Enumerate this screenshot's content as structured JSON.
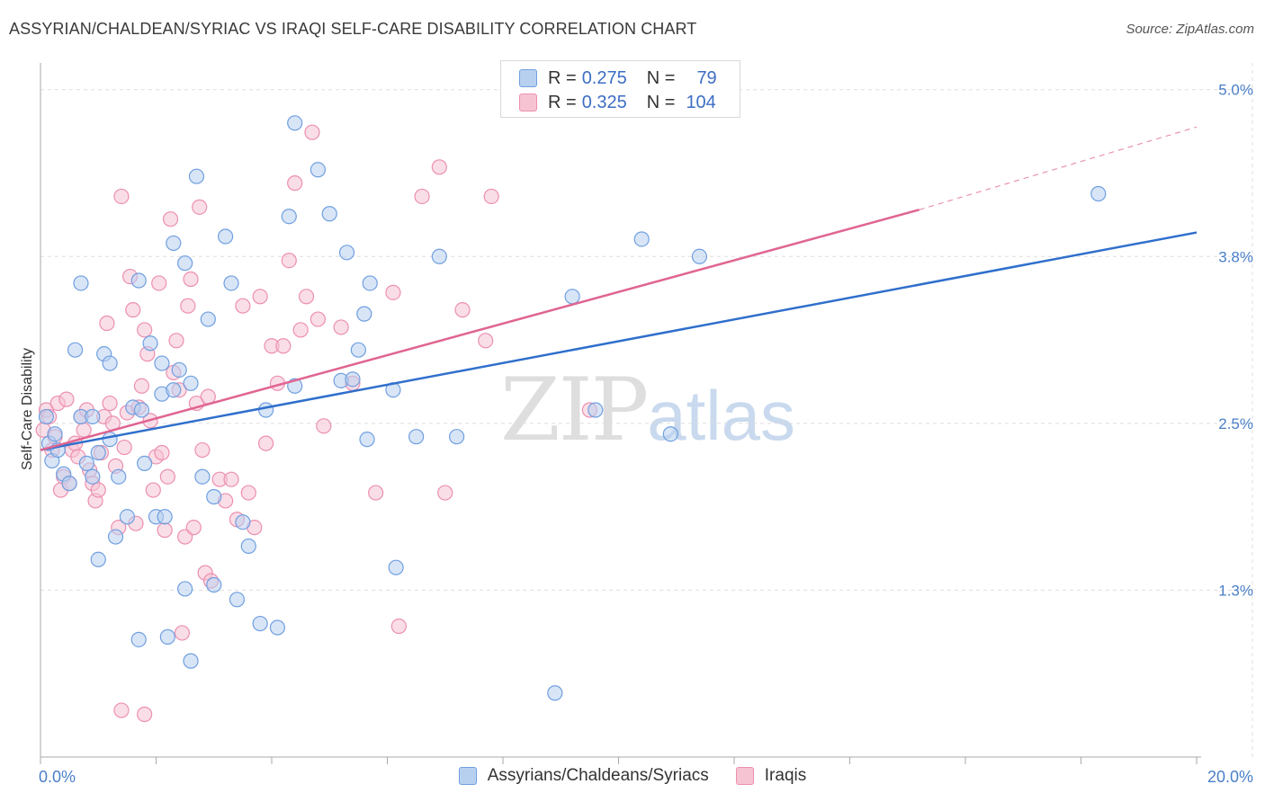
{
  "header": {
    "title": "ASSYRIAN/CHALDEAN/SYRIAC VS IRAQI SELF-CARE DISABILITY CORRELATION CHART",
    "source": "Source: ZipAtlas.com"
  },
  "watermark": {
    "zip": "ZIP",
    "atlas": "atlas"
  },
  "legend": {
    "rows": [
      {
        "r_label": "R =",
        "r_value": "0.275",
        "n_label": "N =",
        "n_value": "79"
      },
      {
        "r_label": "R =",
        "r_value": "0.325",
        "n_label": "N =",
        "n_value": "104"
      }
    ]
  },
  "bottom_legend": {
    "items": [
      {
        "label": "Assyrians/Chaldeans/Syriacs"
      },
      {
        "label": "Iraqis"
      }
    ]
  },
  "colors": {
    "blue_fill": "#b8d0f0",
    "blue_stroke": "#6f9fe0",
    "blue_line": "#2f6fcc",
    "pink_fill": "#f6c3d3",
    "pink_stroke": "#ec8fb0",
    "pink_line": "#e06592",
    "grid": "#dddddd",
    "tick_text": "#4a7fc8"
  },
  "chart_data": {
    "type": "scatter",
    "title": "ASSYRIAN/CHALDEAN/SYRIAC VS IRAQI SELF-CARE DISABILITY CORRELATION CHART",
    "xlabel": "",
    "ylabel": "Self-Care Disability",
    "xlim": [
      0,
      20
    ],
    "ylim": [
      0,
      5.2
    ],
    "x_tick_labels": [
      "0.0%",
      "20.0%"
    ],
    "y_ticks": [
      1.25,
      2.5,
      3.75,
      5.0
    ],
    "y_tick_labels": [
      "1.3%",
      "2.5%",
      "3.8%",
      "5.0%"
    ],
    "grid": true,
    "legend_position": "top-center",
    "series": [
      {
        "name": "Assyrians/Chaldeans/Syriacs",
        "color": "#6f9fe0",
        "trend": {
          "x": [
            0,
            20
          ],
          "y": [
            2.3,
            3.93
          ]
        },
        "points": [
          [
            0.1,
            2.55
          ],
          [
            0.15,
            2.35
          ],
          [
            0.2,
            2.22
          ],
          [
            0.25,
            2.42
          ],
          [
            0.3,
            2.3
          ],
          [
            0.4,
            2.12
          ],
          [
            0.5,
            2.05
          ],
          [
            0.6,
            3.05
          ],
          [
            0.7,
            2.55
          ],
          [
            0.7,
            3.55
          ],
          [
            0.8,
            2.2
          ],
          [
            0.9,
            2.55
          ],
          [
            0.9,
            2.1
          ],
          [
            1.0,
            2.28
          ],
          [
            1.0,
            1.48
          ],
          [
            1.1,
            3.02
          ],
          [
            1.2,
            2.95
          ],
          [
            1.2,
            2.38
          ],
          [
            1.3,
            1.65
          ],
          [
            1.35,
            2.1
          ],
          [
            1.5,
            1.8
          ],
          [
            1.6,
            2.62
          ],
          [
            1.7,
            0.88
          ],
          [
            1.7,
            3.57
          ],
          [
            1.75,
            2.6
          ],
          [
            1.8,
            2.2
          ],
          [
            1.9,
            3.1
          ],
          [
            2.0,
            1.8
          ],
          [
            2.1,
            2.72
          ],
          [
            2.1,
            2.95
          ],
          [
            2.15,
            1.8
          ],
          [
            2.2,
            0.9
          ],
          [
            2.3,
            2.75
          ],
          [
            2.3,
            3.85
          ],
          [
            2.4,
            2.9
          ],
          [
            2.5,
            3.7
          ],
          [
            2.5,
            1.26
          ],
          [
            2.6,
            2.8
          ],
          [
            2.6,
            0.72
          ],
          [
            2.7,
            4.35
          ],
          [
            2.8,
            2.1
          ],
          [
            2.9,
            3.28
          ],
          [
            3.0,
            1.95
          ],
          [
            3.0,
            1.29
          ],
          [
            3.2,
            3.9
          ],
          [
            3.3,
            3.55
          ],
          [
            3.4,
            1.18
          ],
          [
            3.5,
            1.76
          ],
          [
            3.6,
            1.58
          ],
          [
            3.8,
            1.0
          ],
          [
            3.9,
            2.6
          ],
          [
            4.1,
            0.97
          ],
          [
            4.3,
            4.05
          ],
          [
            4.4,
            2.78
          ],
          [
            4.4,
            4.75
          ],
          [
            4.8,
            4.4
          ],
          [
            5.0,
            4.07
          ],
          [
            5.2,
            2.82
          ],
          [
            5.3,
            3.78
          ],
          [
            5.4,
            2.83
          ],
          [
            5.5,
            3.05
          ],
          [
            5.6,
            3.32
          ],
          [
            5.65,
            2.38
          ],
          [
            5.7,
            3.55
          ],
          [
            6.1,
            2.75
          ],
          [
            6.15,
            1.42
          ],
          [
            6.5,
            2.4
          ],
          [
            6.9,
            3.75
          ],
          [
            7.2,
            2.4
          ],
          [
            8.9,
            0.48
          ],
          [
            9.2,
            3.45
          ],
          [
            9.6,
            2.6
          ],
          [
            10.4,
            3.88
          ],
          [
            10.9,
            2.42
          ],
          [
            11.4,
            3.75
          ],
          [
            18.3,
            4.22
          ]
        ]
      },
      {
        "name": "Iraqis",
        "color": "#ec8fb0",
        "trend": {
          "x": [
            0,
            15.2
          ],
          "y": [
            2.3,
            4.1
          ]
        },
        "trend_dashed": {
          "x": [
            15.2,
            20
          ],
          "y": [
            4.1,
            4.72
          ]
        },
        "points": [
          [
            0.05,
            2.45
          ],
          [
            0.1,
            2.6
          ],
          [
            0.15,
            2.55
          ],
          [
            0.2,
            2.3
          ],
          [
            0.25,
            2.4
          ],
          [
            0.3,
            2.65
          ],
          [
            0.35,
            2.0
          ],
          [
            0.4,
            2.1
          ],
          [
            0.45,
            2.68
          ],
          [
            0.5,
            2.05
          ],
          [
            0.55,
            2.3
          ],
          [
            0.6,
            2.35
          ],
          [
            0.65,
            2.25
          ],
          [
            0.7,
            2.55
          ],
          [
            0.75,
            2.45
          ],
          [
            0.8,
            2.6
          ],
          [
            0.85,
            2.15
          ],
          [
            0.9,
            2.05
          ],
          [
            0.95,
            1.92
          ],
          [
            1.0,
            2.0
          ],
          [
            1.05,
            2.28
          ],
          [
            1.1,
            2.55
          ],
          [
            1.15,
            3.25
          ],
          [
            1.2,
            2.65
          ],
          [
            1.25,
            2.5
          ],
          [
            1.3,
            2.18
          ],
          [
            1.35,
            1.72
          ],
          [
            1.4,
            4.2
          ],
          [
            1.45,
            2.32
          ],
          [
            1.5,
            2.58
          ],
          [
            1.55,
            3.6
          ],
          [
            1.6,
            3.35
          ],
          [
            1.65,
            1.75
          ],
          [
            1.7,
            2.62
          ],
          [
            1.75,
            2.78
          ],
          [
            1.8,
            3.2
          ],
          [
            1.85,
            3.02
          ],
          [
            1.9,
            2.52
          ],
          [
            1.95,
            2.0
          ],
          [
            2.0,
            2.25
          ],
          [
            2.05,
            3.55
          ],
          [
            2.1,
            2.28
          ],
          [
            2.15,
            1.7
          ],
          [
            2.2,
            2.1
          ],
          [
            2.25,
            4.03
          ],
          [
            2.3,
            2.88
          ],
          [
            2.35,
            3.12
          ],
          [
            2.4,
            2.75
          ],
          [
            2.45,
            0.93
          ],
          [
            2.5,
            1.65
          ],
          [
            2.55,
            3.38
          ],
          [
            2.6,
            3.58
          ],
          [
            2.65,
            1.72
          ],
          [
            2.7,
            2.65
          ],
          [
            2.75,
            4.12
          ],
          [
            2.8,
            2.3
          ],
          [
            2.85,
            1.38
          ],
          [
            2.9,
            2.7
          ],
          [
            2.95,
            1.32
          ],
          [
            3.1,
            2.08
          ],
          [
            3.2,
            1.92
          ],
          [
            3.3,
            2.08
          ],
          [
            3.4,
            1.78
          ],
          [
            3.5,
            3.38
          ],
          [
            3.6,
            1.98
          ],
          [
            3.7,
            1.72
          ],
          [
            3.8,
            3.45
          ],
          [
            3.9,
            2.35
          ],
          [
            4.0,
            3.08
          ],
          [
            4.1,
            2.8
          ],
          [
            4.2,
            3.08
          ],
          [
            4.3,
            3.72
          ],
          [
            4.4,
            4.3
          ],
          [
            4.5,
            3.2
          ],
          [
            4.6,
            3.45
          ],
          [
            4.7,
            4.68
          ],
          [
            4.8,
            3.28
          ],
          [
            4.9,
            2.48
          ],
          [
            5.2,
            3.22
          ],
          [
            5.4,
            2.8
          ],
          [
            5.8,
            1.98
          ],
          [
            6.1,
            3.48
          ],
          [
            6.2,
            0.98
          ],
          [
            6.6,
            4.2
          ],
          [
            6.9,
            4.42
          ],
          [
            7.0,
            1.98
          ],
          [
            7.3,
            3.35
          ],
          [
            7.7,
            3.12
          ],
          [
            7.8,
            4.2
          ],
          [
            9.5,
            2.6
          ],
          [
            1.4,
            0.35
          ],
          [
            1.8,
            0.32
          ]
        ]
      }
    ]
  }
}
